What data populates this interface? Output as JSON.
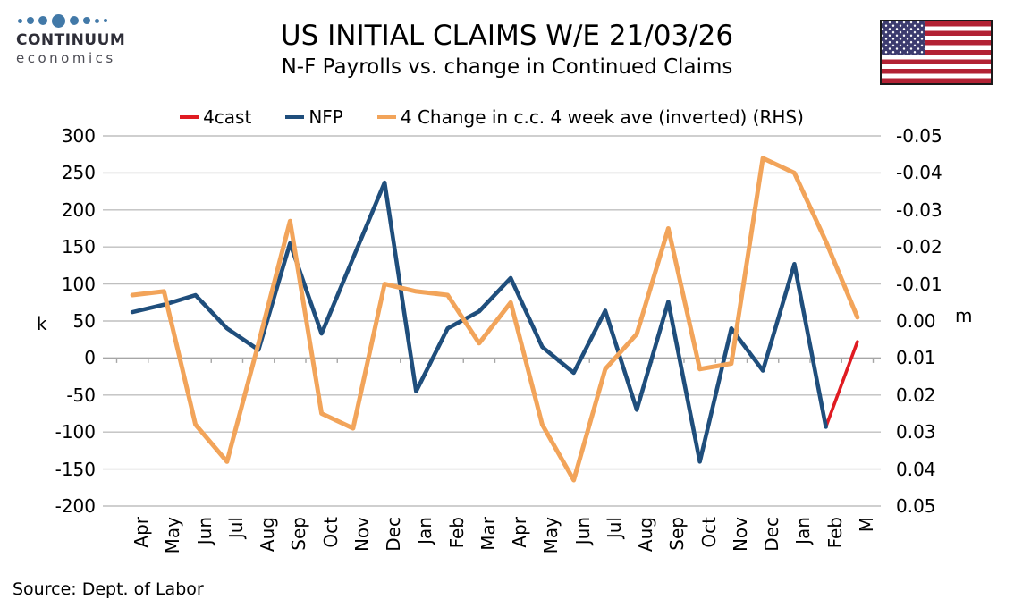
{
  "branding": {
    "logo_line1": "CONTINUUM",
    "logo_line2": "economics"
  },
  "header": {
    "title": "US INITIAL CLAIMS W/E 21/03/26",
    "subtitle": "N-F Payrolls vs. change in Continued Claims"
  },
  "source_note": "Source: Dept. of Labor",
  "colors": {
    "forecast_red": "#e01b22",
    "nfp_blue": "#1f4e7c",
    "claims_orange": "#f2a45a",
    "gridline": "#bfbfbf",
    "axis": "#a6a6a6"
  },
  "chart_data": {
    "type": "line",
    "title": "US INITIAL CLAIMS W/E 21/03/26",
    "subtitle": "N-F Payrolls vs. change in Continued Claims",
    "grid": true,
    "legend_position": "top",
    "categories": [
      "Apr",
      "May",
      "Jun",
      "Jul",
      "Aug",
      "Sep",
      "Oct",
      "Nov",
      "Dec",
      "Jan",
      "Feb",
      "Mar",
      "Apr",
      "May",
      "Jun",
      "Jul",
      "Aug",
      "Sep",
      "Oct",
      "Nov",
      "Dec",
      "Jan",
      "Feb",
      "M"
    ],
    "left_axis": {
      "label": "k",
      "max": 300,
      "min": -200,
      "tick_labels": [
        "300",
        "250",
        "200",
        "150",
        "100",
        "50",
        "0",
        "-50",
        "-100",
        "-150",
        "-200"
      ]
    },
    "right_axis": {
      "label": "m",
      "max": 0.05,
      "min": -0.05,
      "inverted": true,
      "tick_labels": [
        "-0.05",
        "-0.04",
        "-0.03",
        "-0.02",
        "-0.01",
        "0.00",
        "0.01",
        "0.02",
        "0.03",
        "0.04",
        "0.05"
      ]
    },
    "series": [
      {
        "name": "4cast",
        "color": "#e01b22",
        "axis": "left",
        "unit": "k",
        "values": [
          null,
          null,
          null,
          null,
          null,
          null,
          null,
          null,
          null,
          null,
          null,
          null,
          null,
          null,
          null,
          null,
          null,
          null,
          null,
          null,
          null,
          null,
          -93,
          22
        ]
      },
      {
        "name": "NFP",
        "color": "#1f4e7c",
        "axis": "left",
        "unit": "k",
        "values": [
          62,
          72,
          85,
          40,
          11,
          155,
          33,
          135,
          237,
          -45,
          40,
          63,
          108,
          15,
          -20,
          64,
          -70,
          76,
          -140,
          40,
          -17,
          127,
          -93,
          null
        ]
      },
      {
        "name": "4 Change in c.c. 4 week ave (inverted) (RHS)",
        "color": "#f2a45a",
        "axis": "right",
        "unit": "m",
        "values": [
          -0.007,
          -0.008,
          0.028,
          0.038,
          0.006,
          -0.027,
          0.025,
          0.029,
          -0.01,
          -0.008,
          -0.007,
          0.006,
          -0.005,
          0.028,
          0.043,
          0.013,
          0.0035,
          -0.025,
          0.013,
          0.0115,
          -0.044,
          -0.04,
          -0.0215,
          -0.001
        ]
      }
    ]
  }
}
